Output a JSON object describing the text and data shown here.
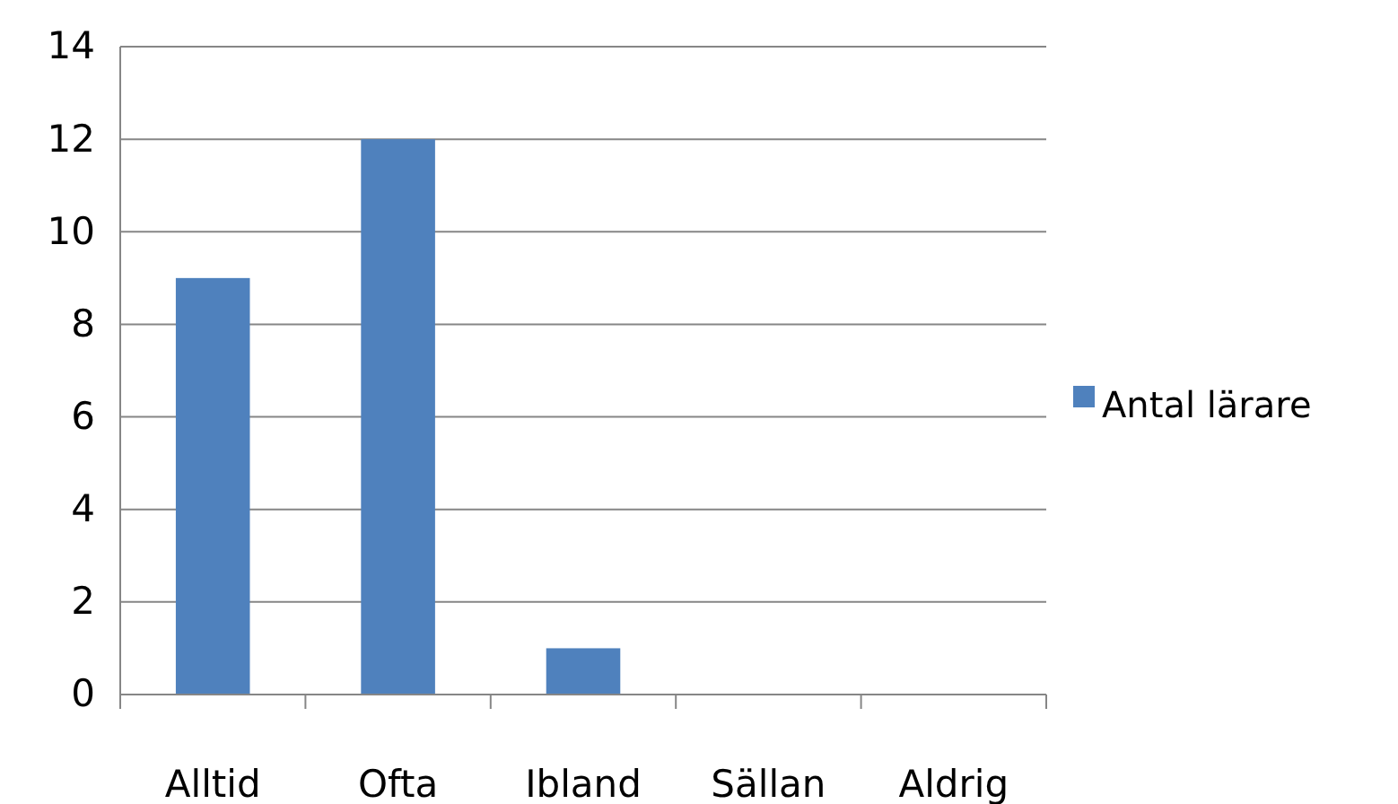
{
  "chart_data": {
    "type": "bar",
    "categories": [
      "Alltid",
      "Ofta",
      "Ibland",
      "Sällan",
      "Aldrig"
    ],
    "series": [
      {
        "name": "Antal lärare",
        "color": "#4f81bd",
        "values": [
          9,
          12,
          1,
          0,
          0
        ]
      }
    ],
    "ylim": [
      0,
      14
    ],
    "yticks": [
      0,
      2,
      4,
      6,
      8,
      10,
      12,
      14
    ],
    "grid": "y",
    "legend": "right"
  }
}
